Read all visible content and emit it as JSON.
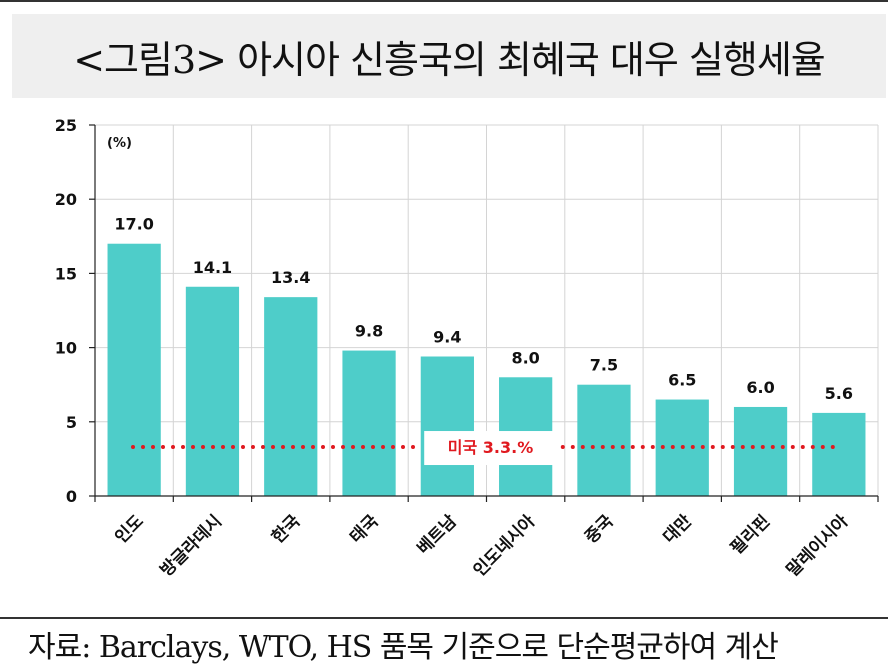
{
  "title": "<그림3> 아시아 신흥국의 최혜국 대우 실행세율",
  "source": "자료: Barclays, WTO, HS 품목 기준으로 단순평균하여 계산",
  "chart_data": {
    "type": "bar",
    "unit_label": "(%)",
    "categories": [
      "인도",
      "방글라데시",
      "한국",
      "태국",
      "베트남",
      "인도네시아",
      "중국",
      "대만",
      "필리핀",
      "말레이시아"
    ],
    "values": [
      17.0,
      14.1,
      13.4,
      9.8,
      9.4,
      8.0,
      7.5,
      6.5,
      6.0,
      5.6
    ],
    "value_labels": [
      "17.0",
      "14.1",
      "13.4",
      "9.8",
      "9.4",
      "8.0",
      "7.5",
      "6.5",
      "6.0",
      "5.6"
    ],
    "ylim": [
      0,
      25
    ],
    "yticks": [
      "0",
      "5",
      "10",
      "15",
      "20",
      "25"
    ],
    "grid": true,
    "bar_color": "#4ecdc9",
    "reference_line": {
      "value": 3.3,
      "label": "미국 3.3.%",
      "color": "#e0191f",
      "style": "dotted"
    }
  }
}
